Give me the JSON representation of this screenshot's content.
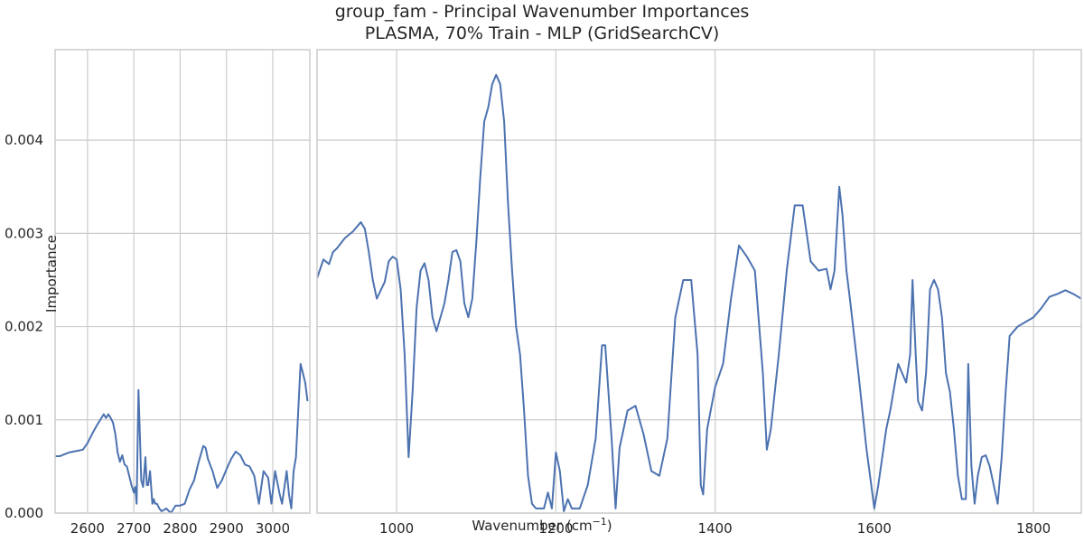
{
  "chart_data": {
    "type": "line",
    "title": "group_fam - Principal Wavenumber Importances",
    "subtitle": "PLASMA, 70% Train - MLP (GridSearchCV)",
    "xlabel": "Wavenumber (cm",
    "xlabel_superscript": "−1",
    "xlabel_suffix": ")",
    "ylabel": "Importance",
    "ylim": [
      0,
      0.00497
    ],
    "yticks": [
      0,
      0.001,
      0.002,
      0.003,
      0.004
    ],
    "ytick_labels": [
      "0.000",
      "0.001",
      "0.002",
      "0.003",
      "0.004"
    ],
    "grid": true,
    "line_color": "#4c72b0",
    "panels": [
      {
        "xlim": [
          2530,
          3080
        ],
        "xticks": [
          2600,
          2700,
          2800,
          2900,
          3000
        ],
        "xtick_labels": [
          "2600",
          "2700",
          "2800",
          "2900",
          "3000"
        ],
        "x": [
          2530,
          2540,
          2550,
          2560,
          2570,
          2580,
          2590,
          2600,
          2610,
          2620,
          2630,
          2635,
          2640,
          2645,
          2650,
          2655,
          2660,
          2665,
          2670,
          2675,
          2680,
          2685,
          2690,
          2695,
          2700,
          2703,
          2706,
          2710,
          2713,
          2716,
          2720,
          2725,
          2728,
          2731,
          2735,
          2740,
          2743,
          2746,
          2750,
          2755,
          2760,
          2770,
          2780,
          2790,
          2800,
          2810,
          2820,
          2830,
          2840,
          2850,
          2855,
          2860,
          2870,
          2880,
          2890,
          2900,
          2910,
          2920,
          2930,
          2940,
          2950,
          2960,
          2970,
          2980,
          2990,
          2997,
          3005,
          3015,
          3020,
          3030,
          3035,
          3040,
          3045,
          3050,
          3055,
          3060,
          3065,
          3070,
          3075
        ],
        "y": [
          0.00061,
          0.00061,
          0.00063,
          0.00065,
          0.00066,
          0.00067,
          0.00068,
          0.00075,
          0.00085,
          0.00094,
          0.00102,
          0.00106,
          0.00102,
          0.00106,
          0.00102,
          0.00097,
          0.00085,
          0.00065,
          0.00055,
          0.00062,
          0.00052,
          0.0005,
          0.0004,
          0.0003,
          0.00022,
          0.00028,
          0.0001,
          0.00132,
          0.00085,
          0.00035,
          0.00028,
          0.0006,
          0.0003,
          0.0003,
          0.00045,
          0.0001,
          0.00015,
          0.0001,
          0.0001,
          5e-05,
          2e-05,
          5e-05,
          0.0,
          8e-05,
          8e-05,
          0.0001,
          0.00025,
          0.00035,
          0.00055,
          0.00072,
          0.0007,
          0.00058,
          0.00045,
          0.00027,
          0.00035,
          0.00047,
          0.00058,
          0.00066,
          0.00062,
          0.00052,
          0.0005,
          0.0004,
          0.0001,
          0.00045,
          0.00038,
          0.0001,
          0.00045,
          0.0002,
          0.0001,
          0.00045,
          0.0002,
          5e-05,
          0.00045,
          0.0006,
          0.0011,
          0.0016,
          0.0015,
          0.0014,
          0.0012
        ]
      },
      {
        "xlim": [
          900,
          1860
        ],
        "xticks": [
          1000,
          1200,
          1400,
          1600,
          1800
        ],
        "xtick_labels": [
          "1000",
          "1200",
          "1400",
          "1600",
          "1800"
        ],
        "x": [
          900,
          908,
          915,
          920,
          925,
          935,
          945,
          955,
          960,
          965,
          970,
          975,
          985,
          990,
          995,
          1000,
          1005,
          1010,
          1015,
          1020,
          1025,
          1030,
          1035,
          1040,
          1045,
          1050,
          1055,
          1060,
          1065,
          1070,
          1075,
          1080,
          1085,
          1090,
          1095,
          1100,
          1105,
          1110,
          1115,
          1120,
          1125,
          1130,
          1135,
          1140,
          1145,
          1150,
          1155,
          1160,
          1165,
          1170,
          1175,
          1180,
          1185,
          1190,
          1195,
          1200,
          1205,
          1210,
          1215,
          1220,
          1230,
          1240,
          1250,
          1258,
          1262,
          1270,
          1275,
          1280,
          1290,
          1300,
          1310,
          1320,
          1330,
          1340,
          1350,
          1360,
          1370,
          1378,
          1382,
          1385,
          1390,
          1400,
          1410,
          1420,
          1430,
          1440,
          1450,
          1460,
          1465,
          1470,
          1475,
          1480,
          1490,
          1500,
          1510,
          1520,
          1530,
          1540,
          1545,
          1550,
          1556,
          1560,
          1565,
          1570,
          1580,
          1590,
          1600,
          1605,
          1610,
          1615,
          1620,
          1630,
          1640,
          1645,
          1648,
          1652,
          1655,
          1660,
          1665,
          1670,
          1675,
          1680,
          1685,
          1690,
          1695,
          1700,
          1705,
          1710,
          1715,
          1718,
          1722,
          1726,
          1730,
          1735,
          1740,
          1745,
          1750,
          1755,
          1760,
          1765,
          1770,
          1780,
          1790,
          1800,
          1810,
          1820,
          1830,
          1840,
          1850,
          1860
        ],
        "y": [
          0.00252,
          0.00272,
          0.00267,
          0.0028,
          0.00284,
          0.00295,
          0.00302,
          0.00312,
          0.00305,
          0.0028,
          0.0025,
          0.0023,
          0.00248,
          0.0027,
          0.00275,
          0.00272,
          0.0024,
          0.0017,
          0.0006,
          0.0013,
          0.0022,
          0.0026,
          0.00268,
          0.0025,
          0.0021,
          0.00195,
          0.0021,
          0.00225,
          0.0025,
          0.0028,
          0.00282,
          0.0027,
          0.00225,
          0.0021,
          0.0023,
          0.0029,
          0.0036,
          0.0042,
          0.00435,
          0.0046,
          0.0047,
          0.0046,
          0.0042,
          0.0033,
          0.0026,
          0.002,
          0.0017,
          0.0011,
          0.0004,
          0.0001,
          5e-05,
          5e-05,
          5e-05,
          0.00022,
          5e-05,
          0.00065,
          0.00045,
          2e-05,
          0.00015,
          5e-05,
          5e-05,
          0.0003,
          0.0008,
          0.0018,
          0.0018,
          0.0008,
          5e-05,
          0.0007,
          0.0011,
          0.00115,
          0.00085,
          0.00045,
          0.0004,
          0.0008,
          0.0021,
          0.0025,
          0.0025,
          0.0017,
          0.0003,
          0.0002,
          0.0009,
          0.00135,
          0.0016,
          0.0023,
          0.00287,
          0.00275,
          0.0026,
          0.0015,
          0.00068,
          0.0009,
          0.0013,
          0.0017,
          0.0026,
          0.0033,
          0.0033,
          0.0027,
          0.0026,
          0.00262,
          0.0024,
          0.0026,
          0.0035,
          0.0032,
          0.0026,
          0.00225,
          0.0015,
          0.0007,
          5e-05,
          0.0003,
          0.0006,
          0.0009,
          0.0011,
          0.0016,
          0.0014,
          0.0017,
          0.0025,
          0.0017,
          0.0012,
          0.0011,
          0.0015,
          0.0024,
          0.0025,
          0.0024,
          0.0021,
          0.0015,
          0.0013,
          0.0009,
          0.0004,
          0.00015,
          0.00015,
          0.0016,
          0.0005,
          0.0001,
          0.0004,
          0.0006,
          0.00062,
          0.0005,
          0.0003,
          0.0001,
          0.0006,
          0.0013,
          0.0019,
          0.002,
          0.00205,
          0.0021,
          0.0022,
          0.00232,
          0.00235,
          0.00239,
          0.00235,
          0.0023
        ]
      }
    ]
  }
}
